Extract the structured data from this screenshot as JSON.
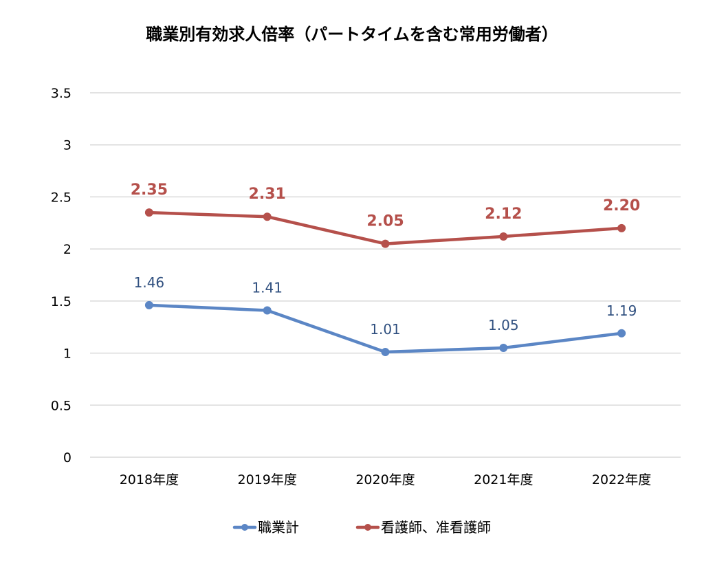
{
  "chart_data": {
    "type": "line",
    "title": "職業別有効求人倍率（パートタイムを含む常用労働者）",
    "xlabel": "",
    "ylabel": "",
    "categories": [
      "2018年度",
      "2019年度",
      "2020年度",
      "2021年度",
      "2022年度"
    ],
    "ylim": [
      0,
      3.5
    ],
    "yticks": [
      0,
      0.5,
      1,
      1.5,
      2,
      2.5,
      3,
      3.5
    ],
    "ytick_labels": [
      "0",
      "0.5",
      "1",
      "1.5",
      "2",
      "2.5",
      "3",
      "3.5"
    ],
    "grid": true,
    "legend_position": "bottom",
    "series": [
      {
        "name": "職業計",
        "values": [
          1.46,
          1.41,
          1.01,
          1.05,
          1.19
        ],
        "labels": [
          "1.46",
          "1.41",
          "1.01",
          "1.05",
          "1.19"
        ],
        "color": "#5b86c5",
        "label_color": "#2f4f7f"
      },
      {
        "name": "看護師、准看護師",
        "values": [
          2.35,
          2.31,
          2.05,
          2.12,
          2.2
        ],
        "labels": [
          "2.35",
          "2.31",
          "2.05",
          "2.12",
          "2.20"
        ],
        "color": "#b5504b",
        "label_color": "#b5504b"
      }
    ]
  }
}
